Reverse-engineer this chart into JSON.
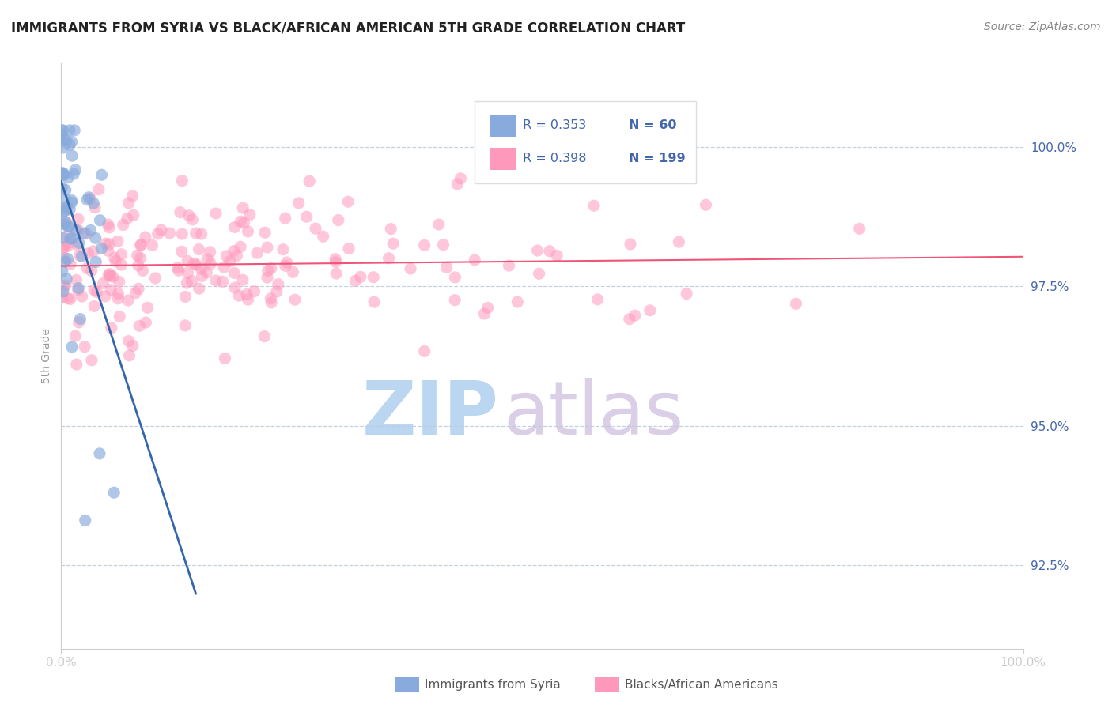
{
  "title": "IMMIGRANTS FROM SYRIA VS BLACK/AFRICAN AMERICAN 5TH GRADE CORRELATION CHART",
  "source_text": "Source: ZipAtlas.com",
  "ylabel": "5th Grade",
  "watermark_zip": "ZIP",
  "watermark_atlas": "atlas",
  "legend_r1": "R = 0.353",
  "legend_n1": "N = 60",
  "legend_r2": "R = 0.398",
  "legend_n2": "N = 199",
  "xlim": [
    0.0,
    100.0
  ],
  "ylim": [
    91.0,
    101.5
  ],
  "yticks": [
    92.5,
    95.0,
    97.5,
    100.0
  ],
  "xtick_labels": [
    "0.0%",
    "100.0%"
  ],
  "ytick_labels": [
    "92.5%",
    "95.0%",
    "97.5%",
    "100.0%"
  ],
  "blue_color": "#88AADD",
  "pink_color": "#FF99BB",
  "blue_line_color": "#3366AA",
  "pink_line_color": "#EE5577",
  "axis_label_color": "#4466AA",
  "watermark_color_zip": "#AACCEE",
  "watermark_color_atlas": "#CCBBDD",
  "background_color": "#FFFFFF",
  "grid_color": "#BBCCDD",
  "spine_color": "#CCCCCC"
}
